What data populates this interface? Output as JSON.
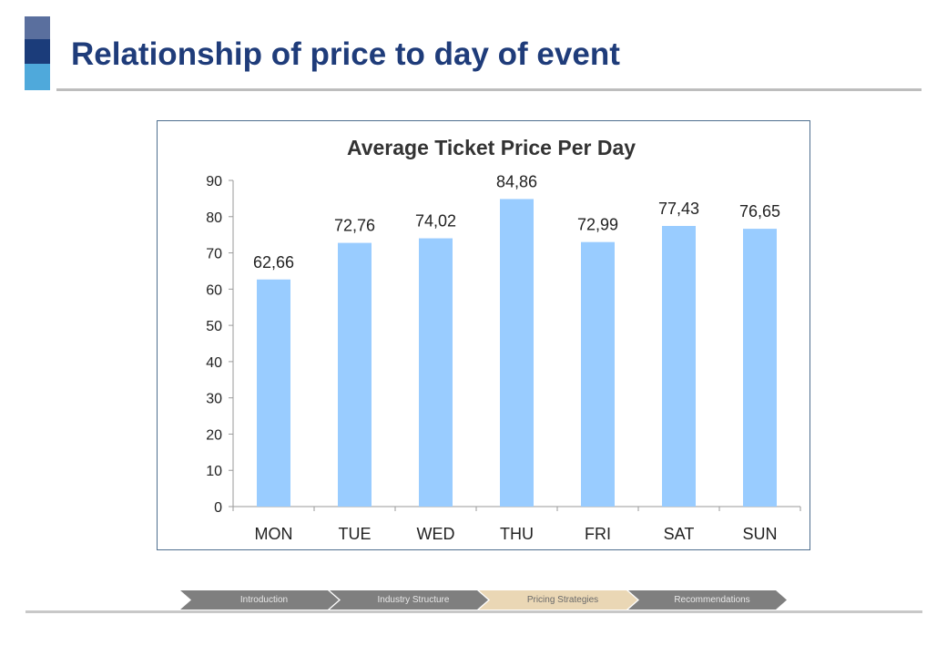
{
  "slide": {
    "title": "Relationship of price to day of event"
  },
  "colors": {
    "bar": "#99ccff",
    "title": "#1f3c7a",
    "nav_inactive": "#7f7f7f",
    "nav_active": "#ead7b5"
  },
  "chart_data": {
    "type": "bar",
    "title": "Average Ticket Price Per Day",
    "categories": [
      "MON",
      "TUE",
      "WED",
      "THU",
      "FRI",
      "SAT",
      "SUN"
    ],
    "values": [
      62.66,
      72.76,
      74.02,
      84.86,
      72.99,
      77.43,
      76.65
    ],
    "data_labels": [
      "62,66",
      "72,76",
      "74,02",
      "84,86",
      "72,99",
      "77,43",
      "76,65"
    ],
    "yticks": [
      0,
      10,
      20,
      30,
      40,
      50,
      60,
      70,
      80,
      90
    ],
    "ylim": [
      0,
      90
    ],
    "xlabel": "",
    "ylabel": "",
    "grid": false,
    "legend": "none"
  },
  "nav": {
    "steps": [
      {
        "label": "Introduction",
        "active": false
      },
      {
        "label": "Industry Structure",
        "active": false
      },
      {
        "label": "Pricing Strategies",
        "active": true
      },
      {
        "label": "Recommendations",
        "active": false
      }
    ]
  }
}
